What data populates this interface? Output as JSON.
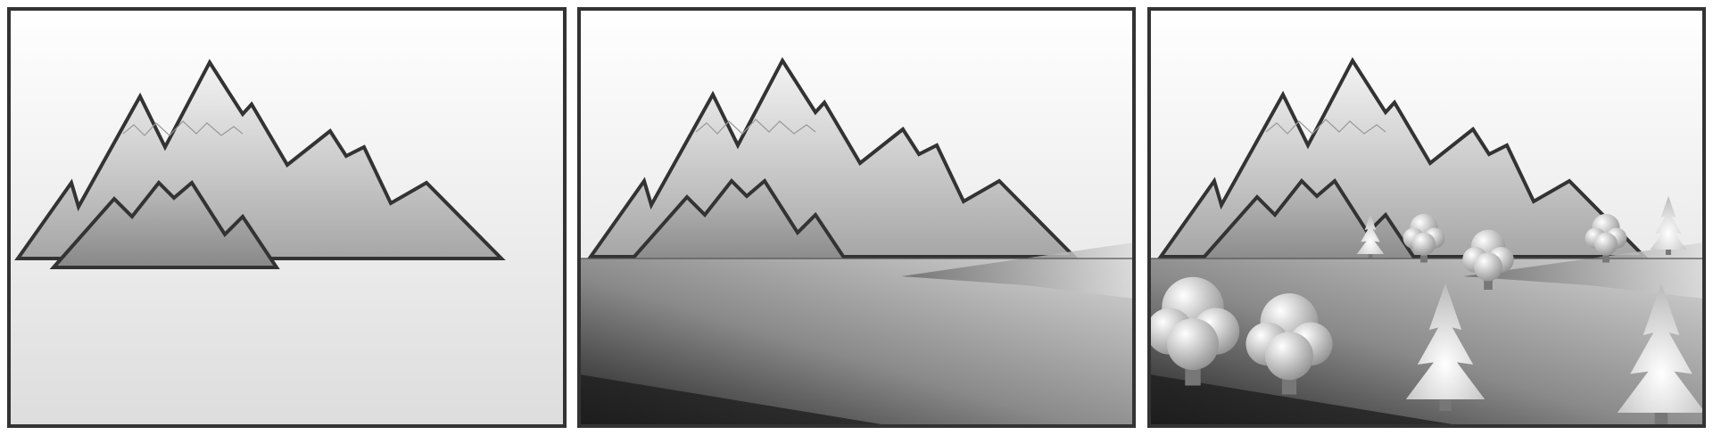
{
  "panels": [
    {
      "name": "mountains",
      "step": 1
    },
    {
      "name": "mountains-with-ground",
      "step": 2
    },
    {
      "name": "mountains-with-ground-and-trees",
      "step": 3
    }
  ],
  "palette": {
    "frame_stroke": "#333333",
    "sky_top": "#ffffff",
    "sky_bottom": "#dcdcdc",
    "mountain_light": "#f0f0f0",
    "mountain_mid": "#b4b4b4",
    "mountain_dark": "#8c8c8c",
    "ground_light": "#c8c8c8",
    "ground_dark": "#222222",
    "tree_light": "#ffffff",
    "tree_dark": "#7a7a7a"
  }
}
